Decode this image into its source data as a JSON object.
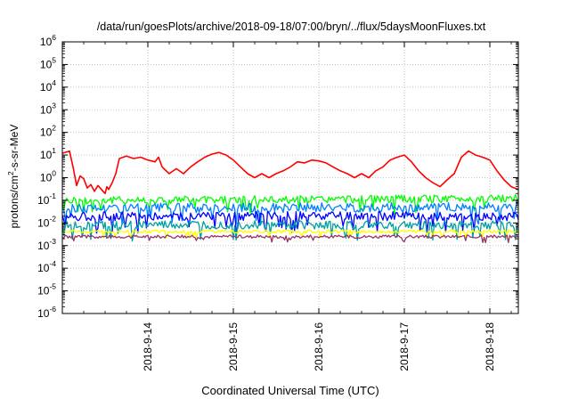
{
  "chart_data": {
    "type": "line",
    "title": "/data/run/goesPlots/archive/2018-09-18/07:00/bryn/../flux/5daysMoonFluxes.txt",
    "xlabel": "Coordinated Universal Time (UTC)",
    "ylabel": {
      "pre": "protons/cm",
      "sup": "2",
      "post": "-s-sr-MeV"
    },
    "x_scale": "date",
    "xlim": [
      "2018-09-13T00:00",
      "2018-09-18T08:00"
    ],
    "x_ticks": [
      "2018-9-14",
      "2018-9-15",
      "2018-9-16",
      "2018-9-17",
      "2018-9-18"
    ],
    "y_scale": "log",
    "ylim": [
      1e-06,
      1000000.0
    ],
    "y_ticks": [
      {
        "base": "10",
        "exp": "-6"
      },
      {
        "base": "10",
        "exp": "-5"
      },
      {
        "base": "10",
        "exp": "-4"
      },
      {
        "base": "10",
        "exp": "-3"
      },
      {
        "base": "10",
        "exp": "-2"
      },
      {
        "base": "10",
        "exp": "-1"
      },
      {
        "base": "10",
        "exp": "0"
      },
      {
        "base": "10",
        "exp": "1"
      },
      {
        "base": "10",
        "exp": "2"
      },
      {
        "base": "10",
        "exp": "3"
      },
      {
        "base": "10",
        "exp": "4"
      },
      {
        "base": "10",
        "exp": "5"
      },
      {
        "base": "10",
        "exp": "6"
      }
    ],
    "grid": true,
    "legend": "none",
    "series": [
      {
        "color": "#ff0000",
        "points": [
          [
            "2018-09-13T00:00",
            12
          ],
          [
            "2018-09-13T02:00",
            15
          ],
          [
            "2018-09-13T03:00",
            3
          ],
          [
            "2018-09-13T04:00",
            0.45
          ],
          [
            "2018-09-13T05:00",
            1.2
          ],
          [
            "2018-09-13T06:00",
            0.9
          ],
          [
            "2018-09-13T07:00",
            0.35
          ],
          [
            "2018-09-13T08:00",
            0.5
          ],
          [
            "2018-09-13T09:00",
            0.25
          ],
          [
            "2018-09-13T10:00",
            0.45
          ],
          [
            "2018-09-13T11:00",
            0.3
          ],
          [
            "2018-09-13T12:00",
            0.2
          ],
          [
            "2018-09-13T12:30",
            0.4
          ],
          [
            "2018-09-13T13:00",
            0.3
          ],
          [
            "2018-09-13T14:00",
            0.6
          ],
          [
            "2018-09-13T15:00",
            1.5
          ],
          [
            "2018-09-13T16:00",
            7
          ],
          [
            "2018-09-13T18:00",
            9
          ],
          [
            "2018-09-13T20:00",
            7
          ],
          [
            "2018-09-13T22:00",
            8
          ],
          [
            "2018-09-14T00:00",
            6
          ],
          [
            "2018-09-14T02:00",
            5
          ],
          [
            "2018-09-14T03:00",
            8
          ],
          [
            "2018-09-14T04:00",
            3
          ],
          [
            "2018-09-14T06:00",
            1.5
          ],
          [
            "2018-09-14T08:00",
            2.5
          ],
          [
            "2018-09-14T10:00",
            1.5
          ],
          [
            "2018-09-14T12:00",
            3
          ],
          [
            "2018-09-14T14:00",
            5
          ],
          [
            "2018-09-14T16:00",
            8
          ],
          [
            "2018-09-14T18:00",
            11
          ],
          [
            "2018-09-14T20:00",
            13
          ],
          [
            "2018-09-14T22:00",
            10
          ],
          [
            "2018-09-15T00:00",
            6
          ],
          [
            "2018-09-15T02:00",
            3
          ],
          [
            "2018-09-15T04:00",
            1.5
          ],
          [
            "2018-09-15T06:00",
            1
          ],
          [
            "2018-09-15T08:00",
            1.5
          ],
          [
            "2018-09-15T10:00",
            1
          ],
          [
            "2018-09-15T12:00",
            1.5
          ],
          [
            "2018-09-15T14:00",
            2
          ],
          [
            "2018-09-15T16:00",
            3
          ],
          [
            "2018-09-15T18:00",
            5
          ],
          [
            "2018-09-15T20:00",
            4.5
          ],
          [
            "2018-09-15T22:00",
            6
          ],
          [
            "2018-09-16T00:00",
            5.5
          ],
          [
            "2018-09-16T02:00",
            4.5
          ],
          [
            "2018-09-16T04:00",
            3
          ],
          [
            "2018-09-16T06:00",
            2
          ],
          [
            "2018-09-16T08:00",
            1.5
          ],
          [
            "2018-09-16T10:00",
            1
          ],
          [
            "2018-09-16T12:00",
            1.5
          ],
          [
            "2018-09-16T14:00",
            1
          ],
          [
            "2018-09-16T16:00",
            2
          ],
          [
            "2018-09-16T18:00",
            3
          ],
          [
            "2018-09-16T20:00",
            6
          ],
          [
            "2018-09-16T22:00",
            8
          ],
          [
            "2018-09-17T00:00",
            10
          ],
          [
            "2018-09-17T02:00",
            5
          ],
          [
            "2018-09-17T04:00",
            2
          ],
          [
            "2018-09-17T06:00",
            1
          ],
          [
            "2018-09-17T08:00",
            0.6
          ],
          [
            "2018-09-17T10:00",
            0.4
          ],
          [
            "2018-09-17T12:00",
            0.8
          ],
          [
            "2018-09-17T14:00",
            1.5
          ],
          [
            "2018-09-17T16:00",
            8
          ],
          [
            "2018-09-17T18:00",
            15
          ],
          [
            "2018-09-17T20:00",
            10
          ],
          [
            "2018-09-17T22:00",
            8
          ],
          [
            "2018-09-18T00:00",
            6
          ],
          [
            "2018-09-18T02:00",
            2
          ],
          [
            "2018-09-18T04:00",
            0.8
          ],
          [
            "2018-09-18T06:00",
            0.4
          ],
          [
            "2018-09-18T08:00",
            0.3
          ]
        ]
      },
      {
        "color": "#00ff00",
        "points": [
          [
            "2018-09-13T00:00",
            0.1
          ],
          [
            "2018-09-18T08:00",
            0.12
          ]
        ]
      },
      {
        "color": "#0080ff",
        "points": [
          [
            "2018-09-13T00:00",
            0.045
          ],
          [
            "2018-09-18T08:00",
            0.05
          ]
        ]
      },
      {
        "color": "#0000ff",
        "points": [
          [
            "2018-09-13T00:00",
            0.02
          ],
          [
            "2018-09-18T08:00",
            0.02
          ]
        ]
      },
      {
        "color": "#00a0a0",
        "points": [
          [
            "2018-09-13T00:00",
            0.008
          ],
          [
            "2018-09-18T08:00",
            0.008
          ]
        ]
      },
      {
        "color": "#ffff00",
        "points": [
          [
            "2018-09-13T00:00",
            0.0042
          ],
          [
            "2018-09-18T08:00",
            0.0042
          ]
        ]
      },
      {
        "color": "#993366",
        "points": [
          [
            "2018-09-13T00:00",
            0.0025
          ],
          [
            "2018-09-18T08:00",
            0.0025
          ]
        ]
      }
    ]
  }
}
